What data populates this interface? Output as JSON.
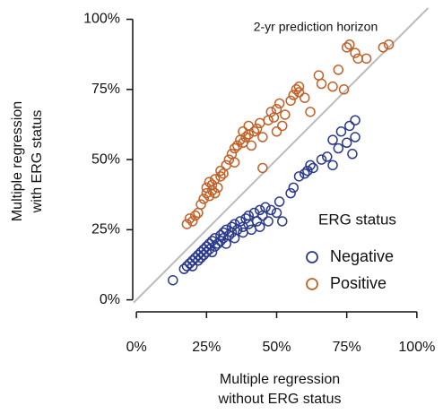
{
  "chart_data": {
    "type": "scatter",
    "annotation": "2-yr prediction horizon",
    "xlabel": [
      "Multiple regression",
      "without ERG status"
    ],
    "ylabel": [
      "Multiple regression",
      "with ERG status"
    ],
    "legend_title": "ERG status",
    "legend_position": "lower right",
    "reference_line": "y=x",
    "xlim": [
      -1,
      109
    ],
    "ylim": [
      -3,
      104
    ],
    "xticks": [
      {
        "value": 0,
        "label": "0%"
      },
      {
        "value": 25,
        "label": "25%"
      },
      {
        "value": 50,
        "label": "50%"
      },
      {
        "value": 75,
        "label": "75%"
      },
      {
        "value": 100,
        "label": "100%"
      }
    ],
    "yticks": [
      {
        "value": 0,
        "label": "0%"
      },
      {
        "value": 25,
        "label": "25%"
      },
      {
        "value": 50,
        "label": "50%"
      },
      {
        "value": 75,
        "label": "75%"
      },
      {
        "value": 100,
        "label": "100%"
      }
    ],
    "series": [
      {
        "name": "Negative",
        "color": "#2b3a8c",
        "x": [
          13,
          17,
          18,
          19,
          20,
          20,
          21,
          22,
          22,
          23,
          23,
          24,
          24,
          25,
          25,
          26,
          26,
          27,
          27,
          28,
          28,
          29,
          30,
          30,
          31,
          31,
          32,
          32,
          33,
          34,
          34,
          35,
          35,
          36,
          37,
          38,
          38,
          39,
          40,
          40,
          41,
          42,
          43,
          44,
          44,
          45,
          46,
          47,
          48,
          50,
          51,
          52,
          55,
          56,
          58,
          60,
          61,
          62,
          63,
          66,
          68,
          70,
          70,
          72,
          73,
          75,
          76,
          77,
          78,
          78
        ],
        "values": [
          7,
          11,
          12,
          13,
          12,
          14,
          15,
          14,
          16,
          15,
          17,
          16,
          18,
          17,
          19,
          18,
          20,
          17,
          21,
          19,
          22,
          20,
          21,
          23,
          22,
          24,
          20,
          25,
          23,
          24,
          26,
          22,
          27,
          25,
          28,
          24,
          26,
          29,
          27,
          30,
          25,
          31,
          28,
          32,
          26,
          30,
          33,
          28,
          32,
          31,
          35,
          28,
          38,
          40,
          44,
          45,
          46,
          48,
          47,
          50,
          51,
          48,
          57,
          54,
          60,
          56,
          62,
          52,
          64,
          58
        ]
      },
      {
        "name": "Positive",
        "color": "#c0622a",
        "x": [
          18,
          19,
          20,
          21,
          22,
          23,
          24,
          25,
          25,
          26,
          26,
          27,
          27,
          28,
          28,
          29,
          30,
          30,
          31,
          32,
          33,
          34,
          35,
          35,
          36,
          37,
          38,
          38,
          39,
          40,
          40,
          41,
          42,
          43,
          44,
          45,
          45,
          47,
          48,
          49,
          50,
          50,
          51,
          52,
          53,
          55,
          56,
          57,
          58,
          58,
          60,
          62,
          65,
          66,
          70,
          72,
          74,
          75,
          76,
          78,
          79,
          82,
          88,
          90
        ],
        "values": [
          27,
          29,
          28,
          30,
          31,
          34,
          36,
          38,
          40,
          37,
          42,
          39,
          41,
          43,
          38,
          40,
          44,
          46,
          45,
          48,
          50,
          52,
          54,
          49,
          55,
          57,
          56,
          60,
          58,
          59,
          62,
          55,
          60,
          61,
          63,
          47,
          58,
          64,
          67,
          65,
          68,
          60,
          70,
          62,
          66,
          71,
          73,
          75,
          76,
          74,
          72,
          67,
          80,
          77,
          76,
          82,
          75,
          90,
          91,
          88,
          86,
          86,
          90,
          91
        ]
      }
    ]
  }
}
